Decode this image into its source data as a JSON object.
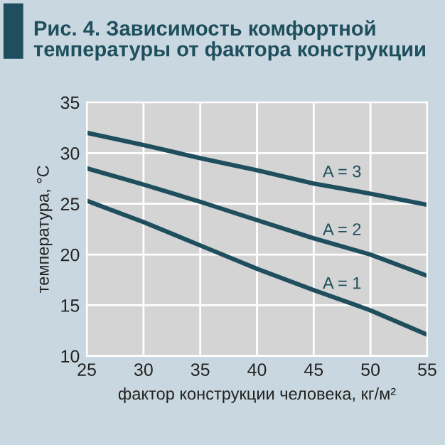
{
  "chart_data": {
    "type": "line",
    "title": "Рис. 4. Зависимость комфортной\nтемпературы от фактора конструкции",
    "xlabel": "фактор конструкции человека, кг/м²",
    "ylabel": "температура, °C",
    "x": [
      25,
      30,
      35,
      40,
      45,
      50,
      55
    ],
    "series": [
      {
        "name": "A = 3",
        "color": "#1f4f5e",
        "values": [
          32.0,
          30.8,
          29.5,
          28.3,
          27.0,
          26.0,
          24.9
        ]
      },
      {
        "name": "A = 2",
        "color": "#1f4f5e",
        "values": [
          28.5,
          26.9,
          25.2,
          23.4,
          21.6,
          20.0,
          17.9
        ]
      },
      {
        "name": "A = 1",
        "color": "#1f4f5e",
        "values": [
          25.3,
          23.2,
          20.9,
          18.6,
          16.5,
          14.5,
          12.1
        ]
      }
    ],
    "xlim": [
      25,
      55
    ],
    "ylim": [
      10,
      35
    ],
    "xticks": [
      25,
      30,
      35,
      40,
      45,
      50,
      55
    ],
    "yticks": [
      10,
      15,
      20,
      25,
      30,
      35
    ],
    "grid": true,
    "legend": false,
    "marker": "none",
    "line_style": "solid"
  }
}
